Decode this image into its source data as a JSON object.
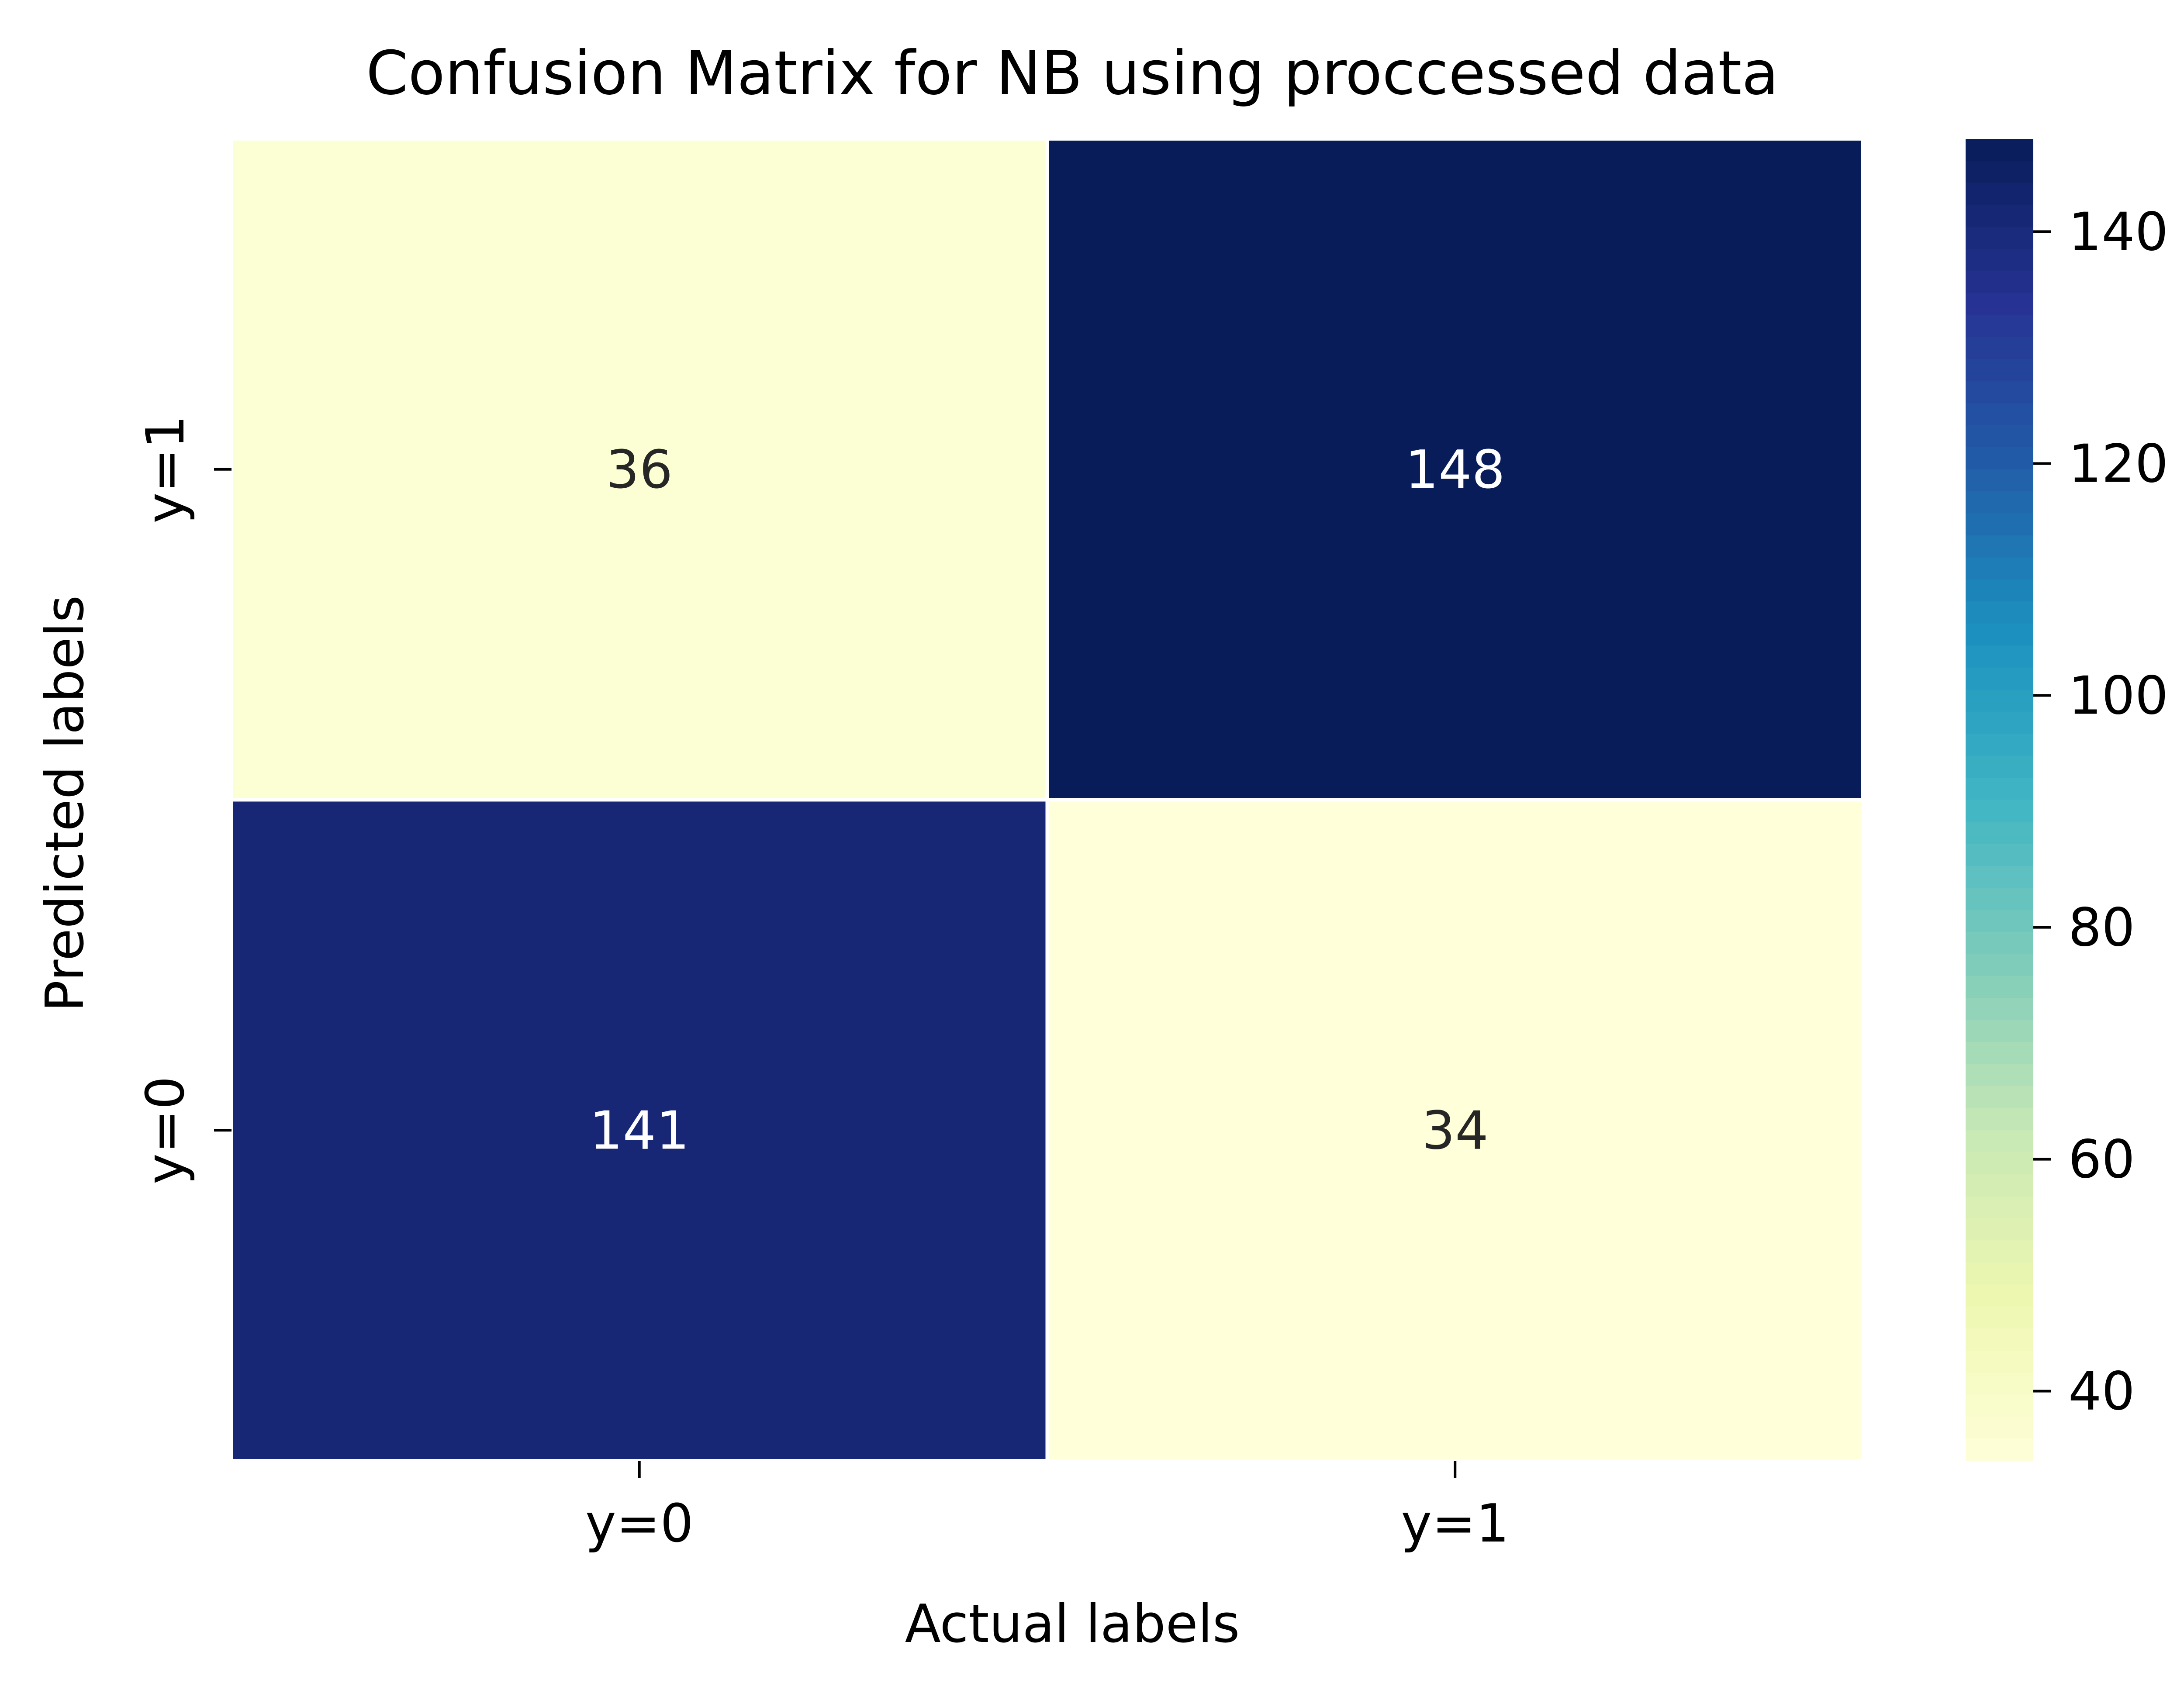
{
  "chart_data": {
    "type": "heatmap",
    "title": "Confusion Matrix for NB using proccessed data",
    "xlabel": "Actual labels",
    "ylabel": "Predicted labels",
    "x_categories": [
      "y=0",
      "y=1"
    ],
    "y_categories": [
      "y=1",
      "y=0"
    ],
    "matrix": [
      [
        36,
        148
      ],
      [
        141,
        34
      ]
    ],
    "colormap": "YlGnBu",
    "colorbar": {
      "range": [
        34,
        148
      ],
      "ticks": [
        40,
        60,
        80,
        100,
        120,
        140
      ],
      "tick_labels": [
        "40",
        "60",
        "80",
        "100",
        "120",
        "140"
      ]
    },
    "colors": {
      "low": "#f8fdd0",
      "high": "#0d1a55",
      "text_dark": "#262626",
      "text_light": "#ffffff"
    }
  }
}
